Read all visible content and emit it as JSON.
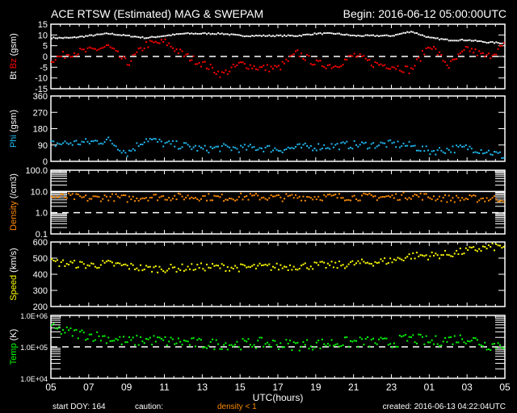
{
  "header": {
    "title": "ACE RTSW (Estimated) MAG & SWEPAM",
    "begin": "Begin: 2016-06-12 05:00:00UTC"
  },
  "footer": {
    "start_doy": "start DOY: 164",
    "caution": "caution:",
    "caution_value": "density < 1",
    "created": "created: 2016-06-13 04:22:04UTC"
  },
  "colors": {
    "bt": "#ffffff",
    "bz": "#ff0000",
    "phi": "#20b8f0",
    "density": "#ff8c00",
    "speed": "#ffff00",
    "temp": "#00ff00",
    "caution": "#ff8c00"
  },
  "chart_data": [
    {
      "type": "scatter",
      "title": "Bt / Bz",
      "ylabel_parts": [
        "Bt",
        "Bz",
        "(gsm)"
      ],
      "ylim": [
        -15,
        15
      ],
      "yscale": "linear",
      "yticks": [
        15,
        10,
        5,
        0,
        -5,
        -10,
        -15
      ],
      "yticklabels": [
        "15",
        "10",
        "5",
        "0",
        "-5",
        "-10",
        "-15"
      ],
      "reference_lines": [
        {
          "y": 0,
          "style": "dashed"
        }
      ],
      "x_hours": [
        0,
        1,
        2,
        3,
        4,
        5,
        6,
        7,
        8,
        9,
        10,
        11,
        12,
        13,
        14,
        15,
        16,
        17,
        18,
        19,
        20,
        21,
        22,
        23,
        24
      ],
      "series": [
        {
          "name": "Bt",
          "color_key": "bt",
          "values": [
            9,
            9,
            10,
            11,
            10,
            9,
            10,
            11,
            11,
            11,
            10,
            10,
            10,
            10,
            11,
            11,
            10,
            10,
            10,
            12,
            9,
            8,
            8,
            7,
            6.5
          ]
        },
        {
          "name": "Bz",
          "color_key": "bz",
          "values": [
            -1,
            2,
            3,
            5,
            -3,
            6,
            7,
            1,
            -3,
            -8,
            -3,
            -5,
            -5,
            2,
            -3,
            -4,
            1,
            -3,
            -4,
            -6,
            6,
            -4,
            4,
            0,
            6
          ]
        }
      ]
    },
    {
      "type": "scatter",
      "ylabel_parts": [
        "Phi",
        "(gsm)"
      ],
      "ylim": [
        0,
        360
      ],
      "yscale": "linear",
      "yticks": [
        360,
        270,
        180,
        90,
        0
      ],
      "yticklabels": [
        "360",
        "270",
        "180",
        "90",
        "0"
      ],
      "x_hours": [
        0,
        1,
        2,
        3,
        4,
        5,
        6,
        7,
        8,
        9,
        10,
        11,
        12,
        13,
        14,
        15,
        16,
        17,
        18,
        19,
        20,
        21,
        22,
        23,
        24
      ],
      "series": [
        {
          "name": "Phi",
          "color_key": "phi",
          "values": [
            100,
            105,
            110,
            120,
            50,
            130,
            100,
            90,
            70,
            80,
            75,
            80,
            70,
            80,
            85,
            90,
            95,
            95,
            100,
            90,
            60,
            70,
            80,
            60,
            30
          ]
        }
      ]
    },
    {
      "type": "scatter",
      "ylabel_parts": [
        "Density",
        "(/cm3)"
      ],
      "ylim": [
        0.1,
        100
      ],
      "yscale": "log",
      "yticks": [
        100,
        10,
        1,
        0.1
      ],
      "yticklabels": [
        "100.0",
        "10.0",
        "1.0",
        "0.1"
      ],
      "reference_lines": [
        {
          "y": 10,
          "style": "solid"
        },
        {
          "y": 1,
          "style": "dashed"
        }
      ],
      "x_hours": [
        0,
        1,
        2,
        3,
        4,
        5,
        6,
        7,
        8,
        9,
        10,
        11,
        12,
        13,
        14,
        15,
        16,
        17,
        18,
        19,
        20,
        21,
        22,
        23,
        24
      ],
      "series": [
        {
          "name": "Density",
          "color_key": "density",
          "values": [
            6,
            6,
            5,
            6,
            5,
            6,
            6,
            6,
            6,
            5.5,
            6,
            6,
            5.5,
            6,
            6,
            6,
            6,
            6,
            6,
            7,
            6,
            5,
            5,
            5,
            5
          ]
        }
      ]
    },
    {
      "type": "scatter",
      "ylabel_parts": [
        "Speed",
        "(km/s)"
      ],
      "ylim": [
        200,
        600
      ],
      "yscale": "linear",
      "yticks": [
        600,
        500,
        400,
        300,
        200
      ],
      "yticklabels": [
        "600",
        "500",
        "400",
        "300",
        "200"
      ],
      "x_hours": [
        0,
        1,
        2,
        3,
        4,
        5,
        6,
        7,
        8,
        9,
        10,
        11,
        12,
        13,
        14,
        15,
        16,
        17,
        18,
        19,
        20,
        21,
        22,
        23,
        24
      ],
      "series": [
        {
          "name": "Speed",
          "color_key": "speed",
          "values": [
            480,
            470,
            460,
            470,
            455,
            440,
            440,
            445,
            450,
            450,
            445,
            450,
            450,
            455,
            460,
            460,
            470,
            480,
            490,
            520,
            520,
            530,
            550,
            570,
            580
          ]
        }
      ]
    },
    {
      "type": "scatter",
      "ylabel_parts": [
        "Temp",
        "(K)"
      ],
      "ylim": [
        10000,
        1000000
      ],
      "yscale": "log",
      "yticks": [
        1000000,
        100000,
        10000
      ],
      "yticklabels": [
        "1.0E+06",
        "1.0E+05",
        "1.0E+04"
      ],
      "reference_lines": [
        {
          "y": 100000,
          "style": "dashed"
        }
      ],
      "x_hours": [
        0,
        1,
        2,
        3,
        4,
        5,
        6,
        7,
        8,
        9,
        10,
        11,
        12,
        13,
        14,
        15,
        16,
        17,
        18,
        19,
        20,
        21,
        22,
        23,
        24
      ],
      "series": [
        {
          "name": "Temp",
          "color_key": "temp",
          "values": [
            400000,
            300000,
            250000,
            200000,
            150000,
            180000,
            160000,
            150000,
            130000,
            130000,
            130000,
            140000,
            130000,
            120000,
            130000,
            140000,
            150000,
            150000,
            140000,
            200000,
            150000,
            180000,
            200000,
            120000,
            130000
          ]
        }
      ]
    }
  ],
  "xaxis": {
    "label": "UTC(hours)",
    "ticklabels": [
      "05",
      "07",
      "09",
      "11",
      "13",
      "15",
      "17",
      "19",
      "21",
      "23",
      "01",
      "03",
      "05"
    ]
  }
}
